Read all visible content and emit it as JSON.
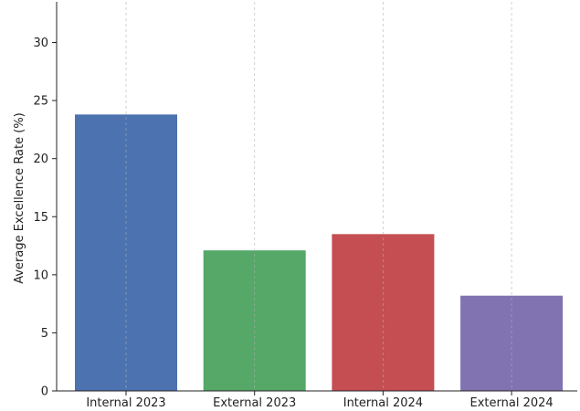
{
  "chart_data": {
    "type": "bar",
    "title": "",
    "xlabel": "",
    "ylabel": "Average Excellence Rate (%)",
    "categories": [
      "Internal 2023",
      "External 2023",
      "Internal 2024",
      "External 2024"
    ],
    "values": [
      23.8,
      12.1,
      13.5,
      8.2
    ],
    "colors": [
      "#4c72b0",
      "#55a868",
      "#c44e52",
      "#8172b2"
    ],
    "ylim": [
      0,
      33.5
    ],
    "yticks": [
      0,
      5,
      10,
      15,
      20,
      25,
      30
    ],
    "grid": {
      "x": true,
      "y": false,
      "style": "dashed"
    },
    "legend": "none"
  }
}
